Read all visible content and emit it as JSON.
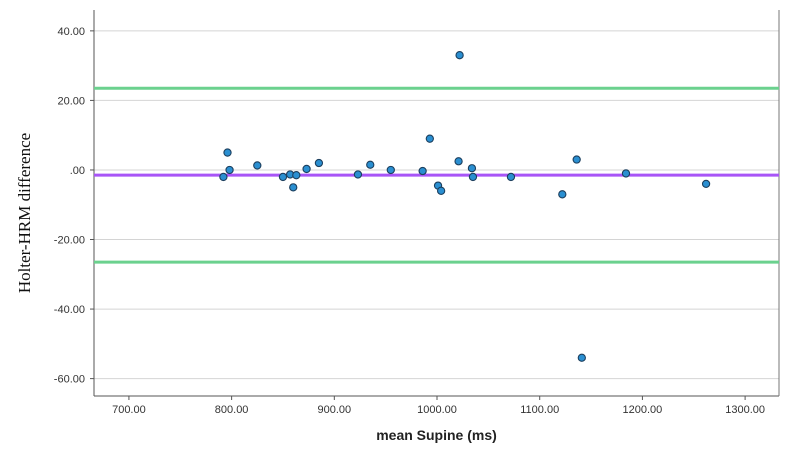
{
  "chart_data": {
    "type": "scatter",
    "title": "",
    "xlabel": "mean Supine (ms)",
    "ylabel": "Holter-HRM difference",
    "xlim": [
      666,
      1333
    ],
    "ylim": [
      -65,
      46
    ],
    "x_ticks": [
      700,
      800,
      900,
      1000,
      1100,
      1200,
      1300
    ],
    "x_tick_labels": [
      "700.00",
      "800.00",
      "900.00",
      "1000.00",
      "1100.00",
      "1200.00",
      "1300.00"
    ],
    "y_ticks": [
      40,
      20,
      0,
      -20,
      -40,
      -60
    ],
    "y_tick_labels": [
      "40.00",
      "20.00",
      ".00",
      "-20.00",
      "-40.00",
      "-60.00"
    ],
    "grid": "horizontal",
    "reference_lines": [
      {
        "kind": "upper-limit",
        "y": 23.5,
        "color": "#6bd18e"
      },
      {
        "kind": "mean-difference",
        "y": -1.5,
        "color": "#a855f7"
      },
      {
        "kind": "lower-limit",
        "y": -26.5,
        "color": "#6bd18e"
      }
    ],
    "point_color": "#2a8fd1",
    "point_stroke": "#1c3f5e",
    "points": [
      {
        "x": 792,
        "y": -2.0
      },
      {
        "x": 796,
        "y": 5.0
      },
      {
        "x": 798,
        "y": 0.0
      },
      {
        "x": 825,
        "y": 1.3
      },
      {
        "x": 850,
        "y": -2.0
      },
      {
        "x": 857,
        "y": -1.3
      },
      {
        "x": 860,
        "y": -5.0
      },
      {
        "x": 863,
        "y": -1.5
      },
      {
        "x": 873,
        "y": 0.3
      },
      {
        "x": 885,
        "y": 2.0
      },
      {
        "x": 923,
        "y": -1.3
      },
      {
        "x": 935,
        "y": 1.5
      },
      {
        "x": 955,
        "y": 0.0
      },
      {
        "x": 986,
        "y": -0.3
      },
      {
        "x": 993,
        "y": 9.0
      },
      {
        "x": 1001,
        "y": -4.5
      },
      {
        "x": 1004,
        "y": -6.0
      },
      {
        "x": 1021,
        "y": 2.5
      },
      {
        "x": 1022,
        "y": 33.0
      },
      {
        "x": 1034,
        "y": 0.5
      },
      {
        "x": 1035,
        "y": -2.0
      },
      {
        "x": 1072,
        "y": -2.0
      },
      {
        "x": 1122,
        "y": -7.0
      },
      {
        "x": 1136,
        "y": 3.0
      },
      {
        "x": 1141,
        "y": -54.0
      },
      {
        "x": 1184,
        "y": -1.0
      },
      {
        "x": 1262,
        "y": -4.0
      }
    ]
  }
}
